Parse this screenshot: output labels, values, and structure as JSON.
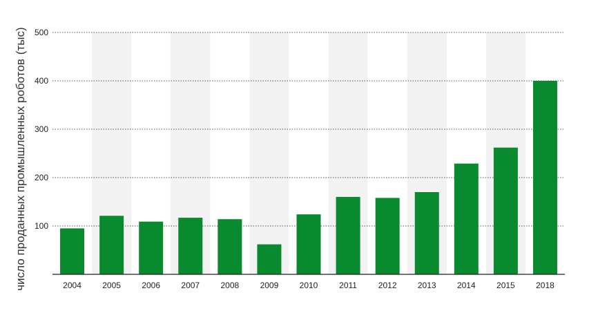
{
  "chart_data": {
    "type": "bar",
    "categories": [
      "2004",
      "2005",
      "2006",
      "2007",
      "2008",
      "2009",
      "2010",
      "2011",
      "2012",
      "2013",
      "2014",
      "2015",
      "2018"
    ],
    "values": [
      95,
      121,
      109,
      117,
      114,
      62,
      124,
      160,
      158,
      170,
      229,
      262,
      400
    ],
    "ylabel": "число проданных промышленных роботов",
    "ylabel_unit": "(тыс)",
    "ylim": [
      0,
      500
    ],
    "yticks": [
      100,
      200,
      300,
      400,
      500
    ],
    "grid": true,
    "grid_style": "dotted",
    "alternating_bands": true,
    "colors": {
      "bar": "#0a8a2e",
      "band": "#f2f2f2",
      "grid": "#555555",
      "axis": "#222222"
    }
  }
}
